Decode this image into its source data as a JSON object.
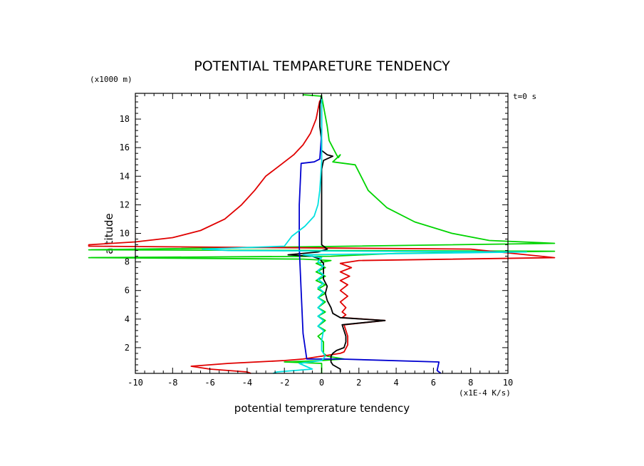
{
  "chart_data": {
    "type": "line",
    "title": "POTENTIAL TEMPARETURE TENDENCY",
    "xlabel": "potential temprerature tendency",
    "ylabel": "altitude",
    "x_unit": "(x1E-4 K/s)",
    "y_unit": "(x1000 m)",
    "time_label": "t=0 s",
    "xlim": [
      -10,
      10
    ],
    "ylim": [
      0.2,
      19.8
    ],
    "x_ticks": [
      -10,
      -8,
      -6,
      -4,
      -2,
      0,
      2,
      4,
      6,
      8,
      10
    ],
    "y_ticks": [
      2,
      4,
      6,
      8,
      10,
      12,
      14,
      16,
      18
    ],
    "grid": false,
    "legend": "none",
    "series": [
      {
        "color": "#00d400",
        "points": [
          [
            -1,
            19.7
          ],
          [
            0,
            19.6
          ],
          [
            0.3,
            17.5
          ],
          [
            0.4,
            16.5
          ],
          [
            0.8,
            15.5
          ],
          [
            0.9,
            15.3
          ],
          [
            1.0,
            15.5
          ],
          [
            0.6,
            15.0
          ],
          [
            1.8,
            14.8
          ],
          [
            2.5,
            13.0
          ],
          [
            3.5,
            11.8
          ],
          [
            5,
            10.8
          ],
          [
            7,
            10.0
          ],
          [
            9,
            9.5
          ],
          [
            12.5,
            9.3
          ],
          [
            -12.5,
            8.85
          ],
          [
            12.5,
            8.75
          ],
          [
            4,
            8.6
          ],
          [
            0.5,
            8.4
          ],
          [
            -12.5,
            8.3
          ],
          [
            -1,
            8.2
          ],
          [
            0.5,
            8.1
          ],
          [
            -0.3,
            7.9
          ],
          [
            0.2,
            7.6
          ],
          [
            -0.3,
            7.3
          ],
          [
            0.2,
            7.0
          ],
          [
            -0.3,
            6.7
          ],
          [
            0.2,
            6.4
          ],
          [
            -0.2,
            6.1
          ],
          [
            0.2,
            5.8
          ],
          [
            -0.2,
            5.5
          ],
          [
            0.2,
            5.2
          ],
          [
            -0.2,
            4.8
          ],
          [
            0.2,
            4.5
          ],
          [
            -0.2,
            4.2
          ],
          [
            0.2,
            3.9
          ],
          [
            -0.2,
            3.5
          ],
          [
            0.2,
            3.2
          ],
          [
            -0.2,
            2.8
          ],
          [
            0.1,
            2.4
          ],
          [
            0.1,
            2.0
          ],
          [
            0.1,
            1.6
          ],
          [
            0.3,
            1.4
          ],
          [
            1.2,
            1.2
          ],
          [
            0,
            1.1
          ],
          [
            -2,
            1.0
          ],
          [
            0,
            0.9
          ],
          [
            0,
            0.2
          ]
        ]
      },
      {
        "color": "#e00000",
        "points": [
          [
            -0.1,
            19.3
          ],
          [
            -0.3,
            18.0
          ],
          [
            -0.6,
            17.0
          ],
          [
            -1,
            16.2
          ],
          [
            -1.5,
            15.5
          ],
          [
            -2.2,
            14.8
          ],
          [
            -3,
            14.0
          ],
          [
            -3.6,
            13.0
          ],
          [
            -4.3,
            12.0
          ],
          [
            -5.2,
            11.0
          ],
          [
            -6.5,
            10.2
          ],
          [
            -8,
            9.7
          ],
          [
            -10,
            9.4
          ],
          [
            -12.5,
            9.2
          ],
          [
            -12.5,
            9.1
          ],
          [
            8,
            8.9
          ],
          [
            12.5,
            8.3
          ],
          [
            2,
            8.1
          ],
          [
            1,
            7.9
          ],
          [
            1.6,
            7.6
          ],
          [
            1,
            7.3
          ],
          [
            1.5,
            7.0
          ],
          [
            1,
            6.7
          ],
          [
            1.4,
            6.4
          ],
          [
            1,
            6.0
          ],
          [
            1.4,
            5.6
          ],
          [
            1,
            5.2
          ],
          [
            1.3,
            4.8
          ],
          [
            1.1,
            4.5
          ],
          [
            1.3,
            4.3
          ],
          [
            1.1,
            4.1
          ],
          [
            3.4,
            3.9
          ],
          [
            1.2,
            3.6
          ],
          [
            1.3,
            3.2
          ],
          [
            1.4,
            2.8
          ],
          [
            1.4,
            2.2
          ],
          [
            1.2,
            1.7
          ],
          [
            1.0,
            1.6
          ],
          [
            -1,
            1.2
          ],
          [
            -2,
            1.1
          ],
          [
            -5,
            0.9
          ],
          [
            -7,
            0.7
          ],
          [
            -6,
            0.5
          ],
          [
            -4,
            0.3
          ],
          [
            -3.8,
            0.2
          ]
        ]
      },
      {
        "color": "#000000",
        "points": [
          [
            0,
            19.7
          ],
          [
            -0.1,
            19.0
          ],
          [
            -0.1,
            17.5
          ],
          [
            0,
            16.5
          ],
          [
            0,
            15.8
          ],
          [
            0.3,
            15.5
          ],
          [
            0.6,
            15.4
          ],
          [
            0.1,
            15.1
          ],
          [
            0,
            14.5
          ],
          [
            0,
            13.0
          ],
          [
            0,
            11.5
          ],
          [
            0,
            10.0
          ],
          [
            0,
            9.2
          ],
          [
            0.3,
            8.9
          ],
          [
            -0.2,
            8.7
          ],
          [
            -1,
            8.6
          ],
          [
            -1.8,
            8.5
          ],
          [
            -0.5,
            8.4
          ],
          [
            -0.1,
            8.2
          ],
          [
            0.1,
            7.9
          ],
          [
            0.1,
            7.4
          ],
          [
            0.1,
            6.8
          ],
          [
            0.3,
            6.3
          ],
          [
            0.2,
            5.8
          ],
          [
            0.3,
            5.3
          ],
          [
            0.5,
            4.8
          ],
          [
            0.6,
            4.4
          ],
          [
            1,
            4.1
          ],
          [
            3.4,
            3.9
          ],
          [
            1.1,
            3.6
          ],
          [
            1.2,
            3.2
          ],
          [
            1.3,
            2.8
          ],
          [
            1.3,
            2.4
          ],
          [
            1.2,
            2.0
          ],
          [
            0.8,
            1.8
          ],
          [
            0.6,
            1.6
          ],
          [
            0.5,
            1.4
          ],
          [
            0.5,
            1.0
          ],
          [
            0.6,
            0.8
          ],
          [
            1,
            0.5
          ],
          [
            1,
            0.3
          ]
        ]
      },
      {
        "color": "#0000d0",
        "points": [
          [
            0,
            19.0
          ],
          [
            0,
            17.0
          ],
          [
            -0.1,
            15.2
          ],
          [
            -0.4,
            15.0
          ],
          [
            -1.1,
            14.9
          ],
          [
            -1.2,
            12.0
          ],
          [
            -1.2,
            9.0
          ],
          [
            -1.1,
            6.0
          ],
          [
            -1.0,
            3.0
          ],
          [
            -0.8,
            1.2
          ],
          [
            1,
            1.2
          ],
          [
            6.3,
            1.0
          ],
          [
            6.2,
            0.4
          ],
          [
            6.4,
            0.2
          ]
        ]
      },
      {
        "color": "#00e0e0",
        "points": [
          [
            0,
            19.5
          ],
          [
            0,
            17.0
          ],
          [
            0,
            15.0
          ],
          [
            -0.1,
            13.0
          ],
          [
            -0.2,
            12.0
          ],
          [
            -0.4,
            11.2
          ],
          [
            -0.9,
            10.5
          ],
          [
            -1.6,
            9.8
          ],
          [
            -2,
            9.1
          ],
          [
            -6.4,
            8.9
          ],
          [
            -5,
            8.8
          ],
          [
            11,
            8.7
          ],
          [
            -1,
            8.5
          ],
          [
            0,
            8.3
          ],
          [
            -0.2,
            8.0
          ],
          [
            0.1,
            7.7
          ],
          [
            -0.2,
            7.4
          ],
          [
            0.1,
            7.1
          ],
          [
            -0.2,
            6.8
          ],
          [
            0.1,
            6.5
          ],
          [
            -0.2,
            6.2
          ],
          [
            0.1,
            5.9
          ],
          [
            -0.2,
            5.5
          ],
          [
            0.1,
            5.2
          ],
          [
            -0.2,
            4.8
          ],
          [
            0.1,
            4.5
          ],
          [
            -0.2,
            4.2
          ],
          [
            0.1,
            3.9
          ],
          [
            -0.2,
            3.5
          ],
          [
            0.1,
            3.2
          ],
          [
            0,
            2.5
          ],
          [
            0,
            1.8
          ],
          [
            0.2,
            1.4
          ],
          [
            0,
            1.1
          ],
          [
            -1.2,
            0.9
          ],
          [
            -0.5,
            0.5
          ],
          [
            -2.4,
            0.3
          ],
          [
            -2.6,
            0.2
          ]
        ]
      }
    ]
  }
}
